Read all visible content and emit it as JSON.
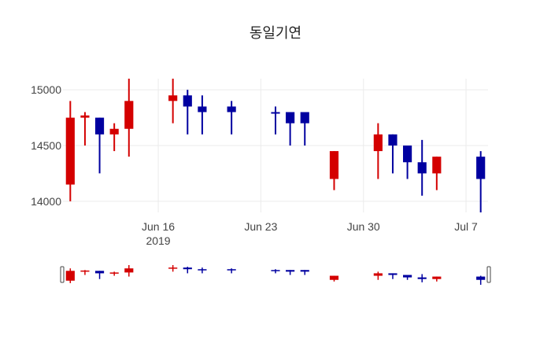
{
  "chart_data": {
    "type": "candlestick",
    "title": "동일기연",
    "xlabel": "",
    "ylabel": "",
    "ylim": [
      13900,
      15100
    ],
    "grid": true,
    "legend": "none",
    "range_slider": true,
    "colors": {
      "increasing": "#d40000",
      "decreasing": "#0000a0"
    },
    "x_ticks": [
      {
        "date": "2019-06-16",
        "label": "Jun 16",
        "sublabel": "2019"
      },
      {
        "date": "2019-06-23",
        "label": "Jun 23"
      },
      {
        "date": "2019-06-30",
        "label": "Jun 30"
      },
      {
        "date": "2019-07-07",
        "label": "Jul 7"
      }
    ],
    "y_ticks": [
      {
        "value": 14000,
        "label": "14000"
      },
      {
        "value": 14500,
        "label": "14500"
      },
      {
        "value": 15000,
        "label": "15000"
      }
    ],
    "x_range": [
      "2019-06-09T12:00",
      "2019-07-08T12:00"
    ],
    "candles": [
      {
        "date": "2019-06-10",
        "open": 14150,
        "high": 14900,
        "low": 14000,
        "close": 14750
      },
      {
        "date": "2019-06-11",
        "open": 14750,
        "high": 14800,
        "low": 14500,
        "close": 14770
      },
      {
        "date": "2019-06-12",
        "open": 14750,
        "high": 14750,
        "low": 14250,
        "close": 14600
      },
      {
        "date": "2019-06-13",
        "open": 14600,
        "high": 14700,
        "low": 14450,
        "close": 14650
      },
      {
        "date": "2019-06-14",
        "open": 14650,
        "high": 15100,
        "low": 14400,
        "close": 14900
      },
      {
        "date": "2019-06-17",
        "open": 14900,
        "high": 15100,
        "low": 14700,
        "close": 14950
      },
      {
        "date": "2019-06-18",
        "open": 14950,
        "high": 15000,
        "low": 14600,
        "close": 14850
      },
      {
        "date": "2019-06-19",
        "open": 14850,
        "high": 14950,
        "low": 14600,
        "close": 14800
      },
      {
        "date": "2019-06-21",
        "open": 14850,
        "high": 14900,
        "low": 14600,
        "close": 14800
      },
      {
        "date": "2019-06-24",
        "open": 14800,
        "high": 14850,
        "low": 14600,
        "close": 14790
      },
      {
        "date": "2019-06-25",
        "open": 14800,
        "high": 14800,
        "low": 14500,
        "close": 14700
      },
      {
        "date": "2019-06-26",
        "open": 14800,
        "high": 14800,
        "low": 14500,
        "close": 14700
      },
      {
        "date": "2019-06-28",
        "open": 14200,
        "high": 14450,
        "low": 14100,
        "close": 14450
      },
      {
        "date": "2019-07-01",
        "open": 14450,
        "high": 14700,
        "low": 14200,
        "close": 14600
      },
      {
        "date": "2019-07-02",
        "open": 14600,
        "high": 14600,
        "low": 14250,
        "close": 14500
      },
      {
        "date": "2019-07-03",
        "open": 14500,
        "high": 14500,
        "low": 14200,
        "close": 14350
      },
      {
        "date": "2019-07-04",
        "open": 14350,
        "high": 14550,
        "low": 14050,
        "close": 14250
      },
      {
        "date": "2019-07-05",
        "open": 14250,
        "high": 14400,
        "low": 14100,
        "close": 14400
      },
      {
        "date": "2019-07-08",
        "open": 14400,
        "high": 14450,
        "low": 13900,
        "close": 14200
      }
    ]
  }
}
